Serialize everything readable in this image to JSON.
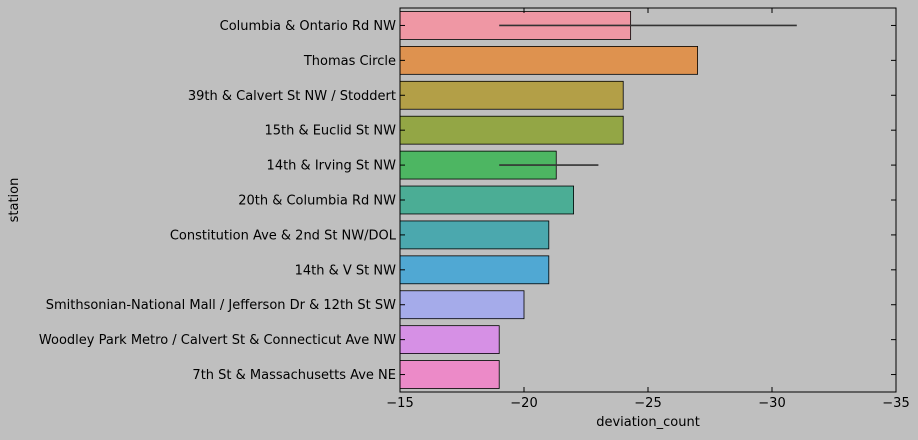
{
  "chart_data": {
    "type": "bar",
    "orientation": "horizontal",
    "xlabel": "deviation_count",
    "ylabel": "station",
    "xlim": [
      -15,
      -35
    ],
    "xticks": [
      -15,
      -20,
      -25,
      -30,
      -35
    ],
    "xtick_labels": [
      "−15",
      "−20",
      "−25",
      "−30",
      "−35"
    ],
    "grid": false,
    "categories": [
      "Columbia & Ontario Rd NW",
      "Thomas Circle",
      "39th & Calvert St NW / Stoddert",
      "15th & Euclid St  NW",
      "14th & Irving St NW",
      "20th & Columbia Rd NW",
      "Constitution Ave & 2nd St NW/DOL",
      "14th & V St NW",
      "Smithsonian-National Mall / Jefferson Dr & 12th St SW",
      "Woodley Park Metro / Calvert St & Connecticut Ave NW",
      "7th St & Massachusetts Ave NE"
    ],
    "values": [
      -24.3,
      -27,
      -24,
      -24,
      -21.3,
      -22,
      -21,
      -21,
      -20,
      -19,
      -19
    ],
    "error_low": [
      -19,
      null,
      null,
      null,
      -19,
      null,
      null,
      null,
      null,
      null,
      null
    ],
    "error_high": [
      -31,
      null,
      null,
      null,
      -23,
      null,
      null,
      null,
      null,
      null,
      null
    ],
    "colors": [
      "#ef97a4",
      "#de924f",
      "#b39f47",
      "#93a645",
      "#4db662",
      "#4bad95",
      "#4ba8ae",
      "#50a8d3",
      "#a5abea",
      "#d690e5",
      "#ec8ac8"
    ]
  }
}
